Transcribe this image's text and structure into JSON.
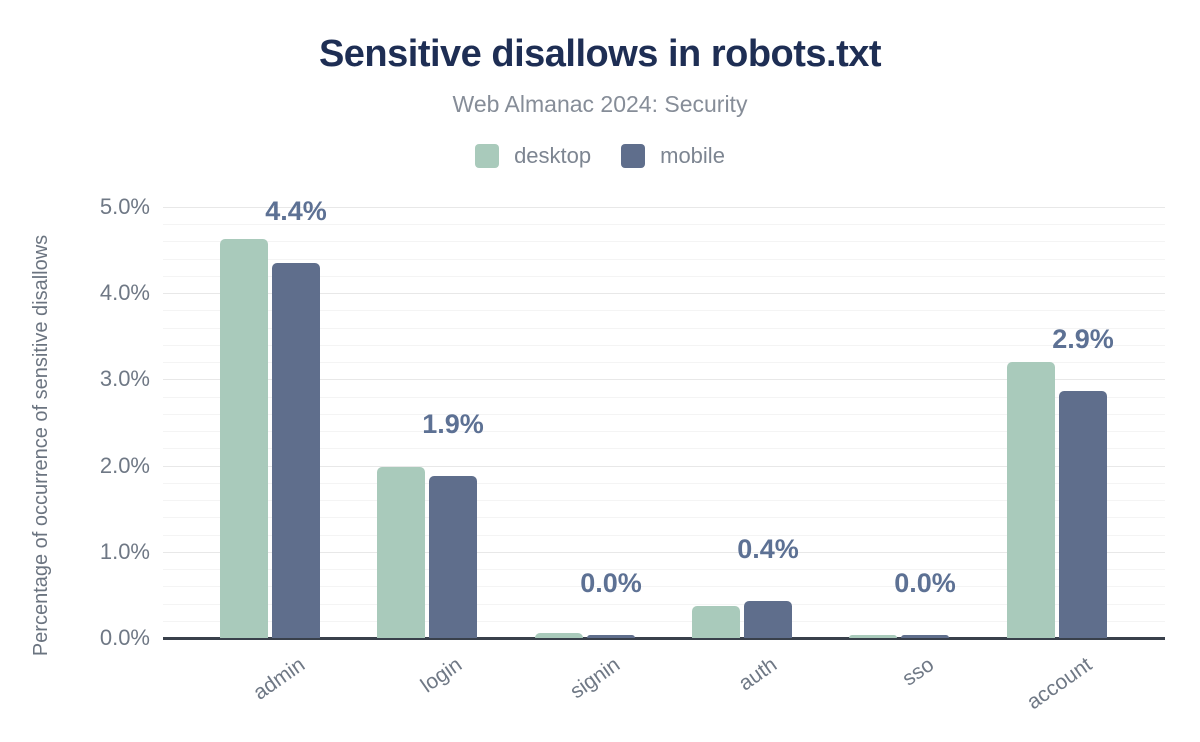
{
  "chart_data": {
    "type": "bar",
    "title": "Sensitive disallows in robots.txt",
    "subtitle": "Web Almanac 2024: Security",
    "categories": [
      "admin",
      "login",
      "signin",
      "auth",
      "sso",
      "account"
    ],
    "series": [
      {
        "name": "desktop",
        "color": "#a9cabb",
        "values": [
          4.6,
          2.0,
          0.1,
          0.4,
          0.0,
          3.2
        ],
        "values_precise": [
          4.63,
          1.98,
          0.06,
          0.37,
          0.03,
          3.2
        ]
      },
      {
        "name": "mobile",
        "color": "#5f6e8c",
        "values": [
          4.4,
          1.9,
          0.0,
          0.4,
          0.0,
          2.9
        ],
        "values_precise": [
          4.35,
          1.88,
          0.03,
          0.43,
          0.03,
          2.87
        ]
      }
    ],
    "value_labels": [
      "4.4%",
      "1.9%",
      "0.0%",
      "0.4%",
      "0.0%",
      "2.9%"
    ],
    "value_labels_series": "mobile",
    "xlabel": "",
    "ylabel": "Percentage of occurrence of sensitive disallows",
    "yticks": [
      "0.0%",
      "1.0%",
      "2.0%",
      "3.0%",
      "4.0%",
      "5.0%"
    ],
    "ylim": [
      0,
      5
    ],
    "grid": "horizontal major every 1.0%, minor every 0.2%",
    "legend_position": "top-center",
    "colors": {
      "title": "#1e2e54",
      "subtitle": "#868d98",
      "axis_text": "#6f7885",
      "value_label": "#5d7194",
      "axis_line": "#39404b",
      "grid_major": "#e8e8e8",
      "grid_minor": "#f4f4f4"
    }
  }
}
